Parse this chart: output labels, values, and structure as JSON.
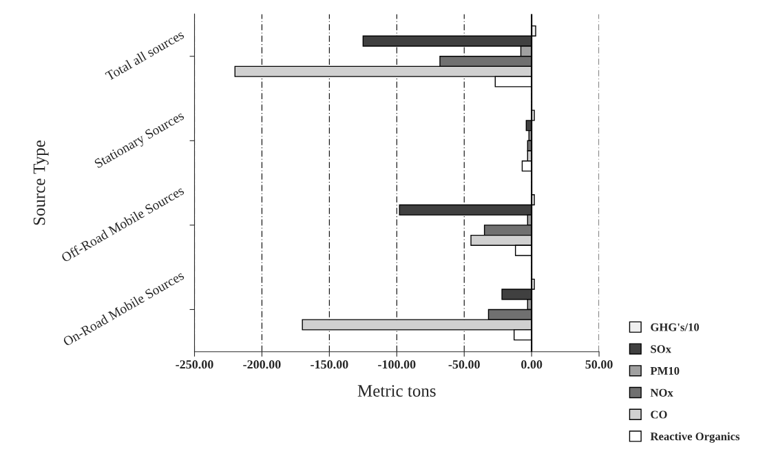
{
  "chart_data": {
    "type": "bar",
    "orientation": "horizontal",
    "xlabel": "Metric tons",
    "ylabel": "Source Type",
    "categories": [
      "Total all sources",
      "Stationary Sources",
      "Off-Road Mobile Sources",
      "On-Road Mobile Sources"
    ],
    "series": [
      {
        "name": "GHG's/10",
        "color": "#f0f0f0",
        "values": [
          3,
          2,
          2,
          2
        ]
      },
      {
        "name": "SOx",
        "color": "#404040",
        "values": [
          -125,
          -4,
          -98,
          -22
        ]
      },
      {
        "name": "PM10",
        "color": "#a0a0a0",
        "values": [
          -8,
          -2,
          -3,
          -3
        ]
      },
      {
        "name": "NOx",
        "color": "#707070",
        "values": [
          -68,
          -3,
          -35,
          -32
        ]
      },
      {
        "name": "CO",
        "color": "#d0d0d0",
        "values": [
          -220,
          -3,
          -45,
          -170
        ]
      },
      {
        "name": "Reactive Organics",
        "color": "#ffffff",
        "values": [
          -27,
          -7,
          -12,
          -13
        ]
      }
    ],
    "xlim": [
      -250,
      50
    ],
    "xticks": [
      {
        "value": -250,
        "label": "-250.00"
      },
      {
        "value": -200,
        "label": "-200.00"
      },
      {
        "value": -150,
        "label": "-150.00"
      },
      {
        "value": -100,
        "label": "-100.00"
      },
      {
        "value": -50,
        "label": "-50.00"
      },
      {
        "value": 0,
        "label": "0.00"
      },
      {
        "value": 50,
        "label": "50.00"
      }
    ],
    "grid": "x",
    "legend": "bottom right"
  }
}
